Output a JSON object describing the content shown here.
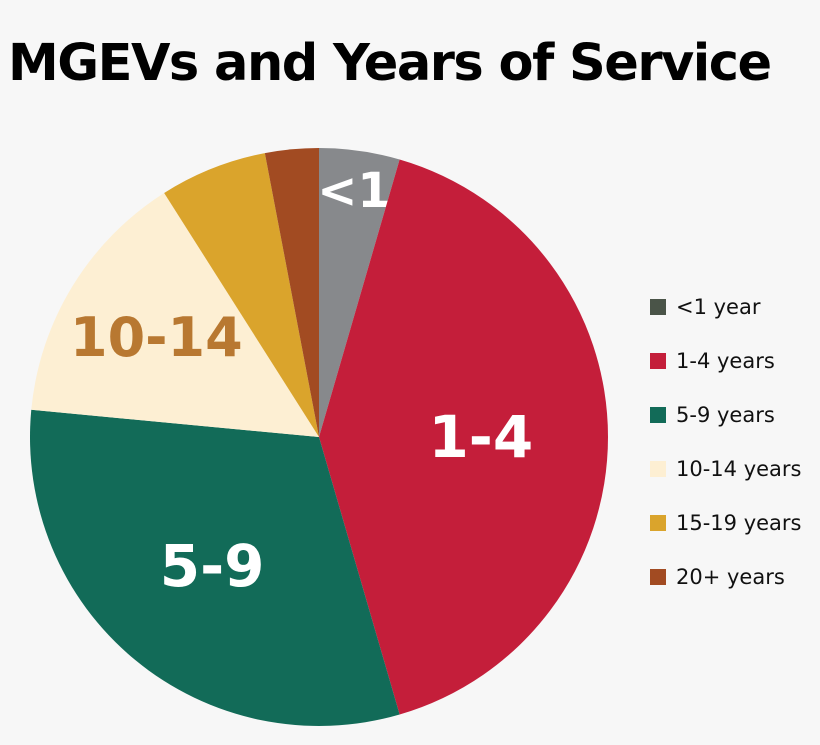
{
  "chart_data": {
    "type": "pie",
    "title": "MGEVs and Years of Service",
    "categories": [
      "<1 year",
      "1-4 years",
      "5-9 years",
      "10-14 years",
      "15-19 years",
      "20+ years"
    ],
    "values": [
      4.5,
      41,
      31,
      14.5,
      6,
      3
    ],
    "slice_labels": [
      "<1",
      "1-4",
      "5-9",
      "10-14",
      "",
      ""
    ],
    "colors": [
      "#87898c",
      "#c41e3a",
      "#126b58",
      "#fdefd3",
      "#daa42c",
      "#a24b22"
    ],
    "legend_colors": [
      "#4a5448",
      "#c41e3a",
      "#126b58",
      "#fdefd3",
      "#daa42c",
      "#a24b22"
    ],
    "label_colors": [
      "#ffffff",
      "#ffffff",
      "#ffffff",
      "#b87831",
      "#ffffff",
      "#ffffff"
    ],
    "legend_position": "right"
  }
}
